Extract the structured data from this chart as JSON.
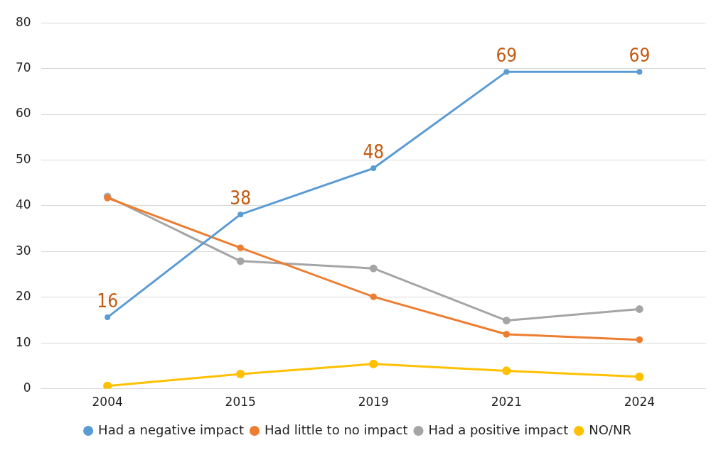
{
  "chart_data": {
    "type": "line",
    "categories": [
      "2004",
      "2015",
      "2019",
      "2021",
      "2024"
    ],
    "series": [
      {
        "name": "Had a negative impact",
        "color": "#5b9bd5",
        "values": [
          15.6,
          38.1,
          48.2,
          69.3,
          69.3
        ],
        "value_labels": [
          "16",
          "38",
          "48",
          "69",
          "69"
        ]
      },
      {
        "name": "Had little to no impact",
        "color": "#ed7d31",
        "values": [
          41.7,
          30.8,
          20.1,
          11.9,
          10.7
        ]
      },
      {
        "name": "Had a positive impact",
        "color": "#a5a5a5",
        "values": [
          42.0,
          27.9,
          26.3,
          14.9,
          17.4
        ]
      },
      {
        "name": "NO/NR",
        "color": "#ffc000",
        "values": [
          0.6,
          3.2,
          5.4,
          3.9,
          2.6
        ]
      }
    ],
    "ylim": [
      0,
      80
    ],
    "yticks": [
      0,
      10,
      20,
      30,
      40,
      50,
      60,
      70,
      80
    ],
    "grid": "y",
    "legend": "bottom",
    "marker": "circle",
    "line_style": "solid"
  }
}
